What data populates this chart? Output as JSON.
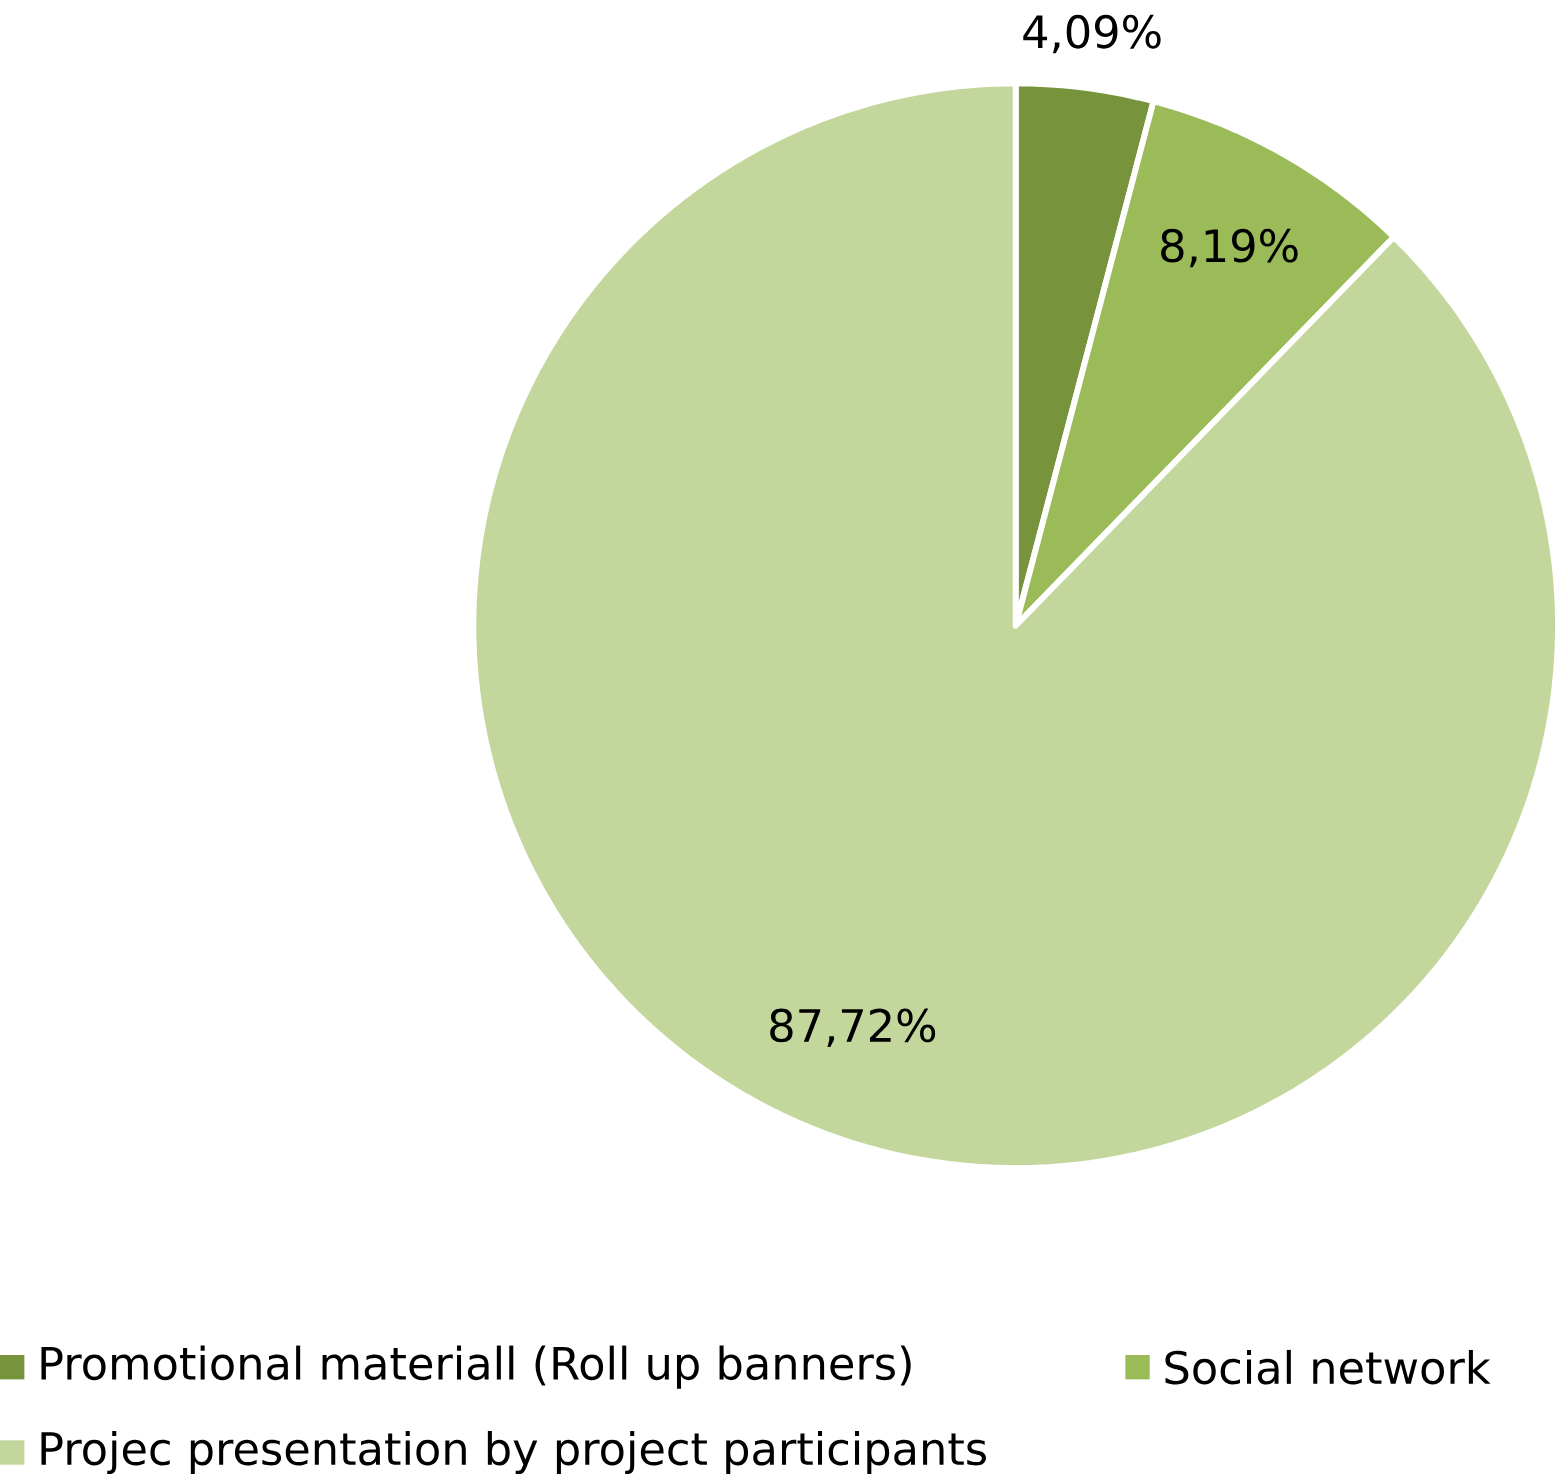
{
  "chart_data": {
    "type": "pie",
    "categories": [
      "Promotional materiall (Roll up banners)",
      "Social network",
      "Projec presentation by project participants"
    ],
    "values": [
      4.09,
      8.19,
      87.72
    ],
    "colors": [
      "#77933c",
      "#9bbb59",
      "#c3d69b"
    ],
    "value_labels": [
      "4,09%",
      "8,19%",
      "87,72%"
    ],
    "legend": "bottom"
  }
}
